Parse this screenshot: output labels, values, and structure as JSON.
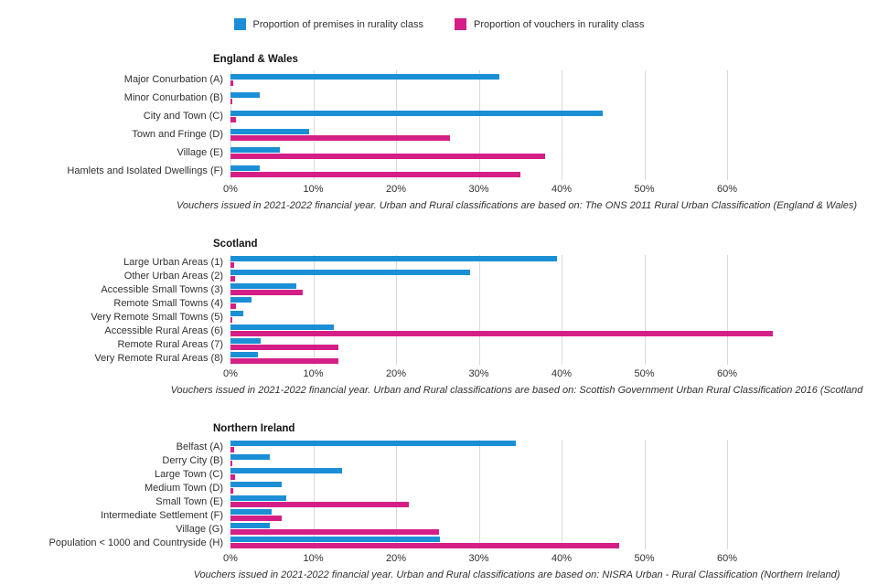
{
  "legend": [
    {
      "label": "Proportion of premises in rurality class",
      "color": "#1b8fd6"
    },
    {
      "label": "Proportion of vouchers in rurality class",
      "color": "#d51f87"
    }
  ],
  "axis": {
    "ticks": [
      "0%",
      "10%",
      "20%",
      "30%",
      "40%",
      "50%",
      "60%"
    ],
    "tick_values": [
      0,
      10,
      20,
      30,
      40,
      50,
      60
    ]
  },
  "chart_data": [
    {
      "type": "bar",
      "orientation": "horizontal",
      "title": "England & Wales",
      "caption": "Vouchers issued in 2021-2022 financial year. Urban and Rural classifications are based on: The ONS 2011 Rural Urban Classification (England & Wales)",
      "xlabel": "",
      "ylabel": "",
      "xlim": [
        0,
        60
      ],
      "grid": true,
      "categories": [
        "Major Conurbation (A)",
        "Minor Conurbation (B)",
        "City and Town (C)",
        "Town and Fringe (D)",
        "Village (E)",
        "Hamlets and Isolated Dwellings (F)"
      ],
      "series": [
        {
          "name": "Proportion of premises in rurality class",
          "values": [
            32.5,
            3.5,
            45,
            9.5,
            6,
            3.5
          ]
        },
        {
          "name": "Proportion of vouchers in rurality class",
          "values": [
            0.3,
            0.2,
            0.7,
            26.5,
            38,
            35
          ]
        }
      ]
    },
    {
      "type": "bar",
      "orientation": "horizontal",
      "title": "Scotland",
      "caption": "Vouchers issued in 2021-2022 financial year. Urban and Rural classifications are based on: Scottish Government Urban Rural Classification 2016 (Scotland",
      "xlabel": "",
      "ylabel": "",
      "xlim": [
        0,
        60
      ],
      "grid": true,
      "categories": [
        "Large Urban Areas (1)",
        "Other Urban Areas (2)",
        "Accessible Small Towns (3)",
        "Remote Small Towns (4)",
        "Very Remote Small Towns (5)",
        "Accessible Rural Areas (6)",
        "Remote Rural Areas (7)",
        "Very Remote Rural Areas (8)"
      ],
      "series": [
        {
          "name": "Proportion of premises in rurality class",
          "values": [
            39.5,
            29,
            8,
            2.5,
            1.5,
            12.5,
            3.7,
            3.3
          ]
        },
        {
          "name": "Proportion of vouchers in rurality class",
          "values": [
            0.4,
            0.5,
            8.7,
            0.7,
            0.2,
            65.5,
            13,
            13
          ]
        }
      ]
    },
    {
      "type": "bar",
      "orientation": "horizontal",
      "title": "Northern Ireland",
      "caption": "Vouchers issued in 2021-2022 financial year. Urban and Rural classifications are based on: NISRA Urban - Rural Classification (Northern Ireland)",
      "xlabel": "",
      "ylabel": "",
      "xlim": [
        0,
        60
      ],
      "grid": true,
      "categories": [
        "Belfast (A)",
        "Derry City (B)",
        "Large Town (C)",
        "Medium Town (D)",
        "Small Town (E)",
        "Intermediate Settlement (F)",
        "Village (G)",
        "Population < 1000 and Countryside (H)"
      ],
      "series": [
        {
          "name": "Proportion of premises in rurality class",
          "values": [
            34.5,
            4.8,
            13.5,
            6.2,
            6.7,
            5,
            4.8,
            25.3
          ]
        },
        {
          "name": "Proportion of vouchers in rurality class",
          "values": [
            0.4,
            0.2,
            0.5,
            0.3,
            21.5,
            6.2,
            25.2,
            47
          ]
        }
      ]
    }
  ]
}
